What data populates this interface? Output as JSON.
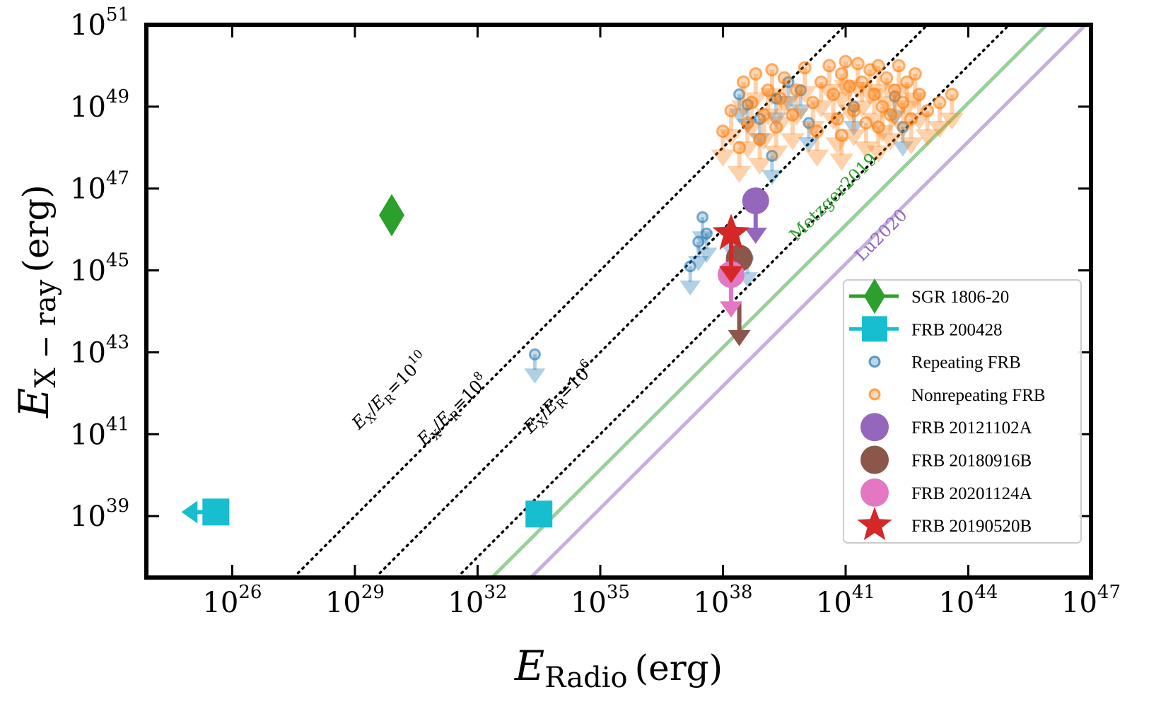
{
  "chart_data": {
    "type": "scatter",
    "xlabel": "E_Radio (erg)",
    "ylabel": "E_X-ray (erg)",
    "axis_titles": {
      "x_main": "E",
      "x_sub": "Radio",
      "x_unit": "(erg)",
      "y_main": "E",
      "y_sub": "X − ray",
      "y_unit": "(erg)"
    },
    "x_scale": "log10",
    "y_scale": "log10",
    "xlim_log10": [
      23.9,
      47
    ],
    "ylim_log10": [
      37.5,
      51
    ],
    "x_ticks": [
      {
        "base": "10",
        "exp": "26",
        "log": 26
      },
      {
        "base": "10",
        "exp": "29",
        "log": 29
      },
      {
        "base": "10",
        "exp": "32",
        "log": 32
      },
      {
        "base": "10",
        "exp": "35",
        "log": 35
      },
      {
        "base": "10",
        "exp": "38",
        "log": 38
      },
      {
        "base": "10",
        "exp": "41",
        "log": 41
      },
      {
        "base": "10",
        "exp": "44",
        "log": 44
      },
      {
        "base": "10",
        "exp": "47",
        "log": 47
      }
    ],
    "y_ticks": [
      {
        "base": "10",
        "exp": "39",
        "log": 39
      },
      {
        "base": "10",
        "exp": "41",
        "log": 41
      },
      {
        "base": "10",
        "exp": "43",
        "log": 43
      },
      {
        "base": "10",
        "exp": "45",
        "log": 45
      },
      {
        "base": "10",
        "exp": "47",
        "log": 47
      },
      {
        "base": "10",
        "exp": "49",
        "log": 49
      },
      {
        "base": "10",
        "exp": "51",
        "log": 51
      }
    ],
    "ratio_lines": [
      {
        "log_ratio": 10,
        "text": "E_X/E_R = 10^10",
        "t_main": "E",
        "t_sub1": "X",
        "t_mid": "/",
        "t_main2": "E",
        "t_sub2": "R",
        "t_eq": "=10",
        "t_exp": "10",
        "label_at": [
          29.1,
          41.1
        ]
      },
      {
        "log_ratio": 8,
        "text": "E_X/E_R = 10^8",
        "t_main": "E",
        "t_sub1": "X",
        "t_mid": "/",
        "t_main2": "E",
        "t_sub2": "R",
        "t_eq": "=10",
        "t_exp": "8",
        "label_at": [
          30.7,
          40.7
        ]
      },
      {
        "log_ratio": 6,
        "text": "E_X/E_R = 10^6",
        "t_main": "E",
        "t_sub1": "X",
        "t_mid": "/",
        "t_main2": "E",
        "t_sub2": "R",
        "t_eq": "=10",
        "t_exp": "6",
        "label_at": [
          33.3,
          41.0
        ]
      }
    ],
    "model_lines": [
      {
        "name": "Metzger2019",
        "points": [
          [
            32.35,
            37.5
          ],
          [
            45.92,
            51
          ]
        ],
        "color": "#98d198",
        "text_color": "#2ca02c",
        "label_at": [
          39.8,
          45.7
        ]
      },
      {
        "name": "Lu2020",
        "points": [
          [
            33.3,
            37.5
          ],
          [
            46.87,
            51
          ]
        ],
        "color": "#c5b0dd",
        "text_color": "#9467bd",
        "label_at": [
          41.4,
          45.2
        ]
      }
    ],
    "series": [
      {
        "name": "SGR 1806-20",
        "marker": "diamond",
        "color": "#2ca02c",
        "points": [
          [
            29.9,
            46.35
          ]
        ]
      },
      {
        "name": "FRB 200428",
        "marker": "square",
        "color": "#17becf",
        "points": [
          [
            25.6,
            39.1
          ],
          [
            33.5,
            39.05
          ]
        ],
        "upper_limit_x": [
          true,
          false
        ]
      },
      {
        "name": "Repeating FRB",
        "marker": "circle_open",
        "color": "#1f77b4",
        "upper_limit": true,
        "points": [
          [
            33.4,
            42.95
          ],
          [
            37.2,
            45.1
          ],
          [
            37.4,
            45.7
          ],
          [
            37.5,
            46.3
          ],
          [
            37.6,
            45.9
          ],
          [
            38.2,
            46.0
          ],
          [
            38.3,
            45.6
          ],
          [
            38.6,
            45.3
          ],
          [
            38.4,
            49.3
          ],
          [
            38.6,
            49.05
          ],
          [
            38.9,
            48.7
          ],
          [
            39.2,
            47.8
          ],
          [
            39.3,
            49.2
          ],
          [
            39.6,
            49.6
          ],
          [
            39.9,
            49.4
          ],
          [
            40.1,
            48.6
          ],
          [
            41.2,
            49.0
          ],
          [
            42.2,
            49.25
          ],
          [
            42.4,
            48.5
          ]
        ]
      },
      {
        "name": "Nonrepeating FRB",
        "marker": "circle_open",
        "color": "#ff7f0e",
        "upper_limit": true,
        "points": [
          [
            38.0,
            48.4
          ],
          [
            38.2,
            48.9
          ],
          [
            38.4,
            48.0
          ],
          [
            38.5,
            49.6
          ],
          [
            38.6,
            48.6
          ],
          [
            38.7,
            49.1
          ],
          [
            38.8,
            49.8
          ],
          [
            38.9,
            48.2
          ],
          [
            39.0,
            48.8
          ],
          [
            39.1,
            49.4
          ],
          [
            39.2,
            49.9
          ],
          [
            39.3,
            48.5
          ],
          [
            39.4,
            49.2
          ],
          [
            39.5,
            49.7
          ],
          [
            39.7,
            48.8
          ],
          [
            39.8,
            49.4
          ],
          [
            40.0,
            49.95
          ],
          [
            40.2,
            49.1
          ],
          [
            40.4,
            49.6
          ],
          [
            40.6,
            50.0
          ],
          [
            40.7,
            49.3
          ],
          [
            40.8,
            48.7
          ],
          [
            40.9,
            49.8
          ],
          [
            41.0,
            50.1
          ],
          [
            41.1,
            49.5
          ],
          [
            41.2,
            48.9
          ],
          [
            41.3,
            50.05
          ],
          [
            41.4,
            49.6
          ],
          [
            41.5,
            48.6
          ],
          [
            41.6,
            49.9
          ],
          [
            41.7,
            49.3
          ],
          [
            41.8,
            50.0
          ],
          [
            41.9,
            49.0
          ],
          [
            42.0,
            49.7
          ],
          [
            42.1,
            48.8
          ],
          [
            42.2,
            49.4
          ],
          [
            42.3,
            50.0
          ],
          [
            42.4,
            49.1
          ],
          [
            42.5,
            49.6
          ],
          [
            42.6,
            48.7
          ],
          [
            42.8,
            49.3
          ],
          [
            43.0,
            48.9
          ],
          [
            42.7,
            49.8
          ],
          [
            43.3,
            49.1
          ],
          [
            43.6,
            49.3
          ],
          [
            40.3,
            48.4
          ],
          [
            40.9,
            48.3
          ],
          [
            41.8,
            48.5
          ]
        ]
      },
      {
        "name": "FRB 20121102A",
        "marker": "circle",
        "color": "#9467bd",
        "points": [
          [
            38.8,
            46.7
          ]
        ],
        "upper_limit": true
      },
      {
        "name": "FRB 20180916B",
        "marker": "circle",
        "color": "#8c564b",
        "points": [
          [
            38.4,
            45.3
          ],
          [
            38.4,
            44.2
          ]
        ],
        "upper_limit": [
          false,
          true
        ]
      },
      {
        "name": "FRB 20201124A",
        "marker": "circle",
        "color": "#e377c2",
        "points": [
          [
            38.2,
            44.9
          ]
        ],
        "upper_limit": true
      },
      {
        "name": "FRB 20190520B",
        "marker": "star",
        "color": "#d62728",
        "points": [
          [
            38.2,
            45.9
          ]
        ],
        "upper_limit": true
      }
    ],
    "legend_placement": "lower-right",
    "legend": [
      {
        "label": "SGR 1806-20",
        "marker": "diamond",
        "color": "#2ca02c"
      },
      {
        "label": "FRB 200428",
        "marker": "square",
        "color": "#17becf"
      },
      {
        "label": "Repeating FRB",
        "marker": "circle_open",
        "color": "#1f77b4"
      },
      {
        "label": "Nonrepeating FRB",
        "marker": "circle_open",
        "color": "#ff7f0e"
      },
      {
        "label": "FRB 20121102A",
        "marker": "circle",
        "color": "#9467bd"
      },
      {
        "label": "FRB 20180916B",
        "marker": "circle",
        "color": "#8c564b"
      },
      {
        "label": "FRB 20201124A",
        "marker": "circle",
        "color": "#e377c2"
      },
      {
        "label": "FRB 20190520B",
        "marker": "star",
        "color": "#d62728"
      }
    ]
  }
}
